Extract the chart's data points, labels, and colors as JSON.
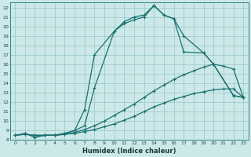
{
  "xlabel": "Humidex (Indice chaleur)",
  "background_color": "#cce8e8",
  "grid_color": "#8abfbf",
  "line_color": "#1a7070",
  "xlim": [
    -0.5,
    23.5
  ],
  "ylim": [
    8,
    22.5
  ],
  "xticks": [
    0,
    1,
    2,
    3,
    4,
    5,
    6,
    7,
    8,
    9,
    10,
    11,
    12,
    13,
    14,
    15,
    16,
    17,
    18,
    19,
    20,
    21,
    22,
    23
  ],
  "yticks": [
    8,
    9,
    10,
    11,
    12,
    13,
    14,
    15,
    16,
    17,
    18,
    19,
    20,
    21,
    22
  ],
  "curve1_x": [
    1,
    2,
    3,
    4,
    5,
    6,
    7,
    8,
    10,
    11,
    12,
    13,
    14,
    15,
    16,
    17,
    19,
    20,
    22,
    23
  ],
  "curve1_y": [
    8.7,
    8.3,
    8.5,
    8.5,
    8.7,
    9.0,
    11.2,
    17.0,
    19.5,
    20.5,
    21.0,
    21.2,
    22.2,
    21.2,
    20.8,
    17.3,
    17.2,
    16.0,
    12.7,
    12.5
  ],
  "curve2_x": [
    0,
    1,
    2,
    3,
    4,
    5,
    6,
    7,
    8,
    10,
    11,
    12,
    13,
    14,
    15,
    16,
    17,
    19,
    20,
    22,
    23
  ],
  "curve2_y": [
    8.5,
    8.7,
    8.3,
    8.5,
    8.5,
    8.7,
    9.0,
    9.5,
    13.5,
    19.5,
    20.3,
    20.7,
    21.0,
    22.2,
    21.2,
    20.8,
    19.0,
    17.2,
    16.0,
    12.7,
    12.5
  ],
  "curve3_x": [
    0,
    1,
    2,
    3,
    4,
    5,
    6,
    7,
    8,
    9,
    10,
    11,
    12,
    13,
    14,
    15,
    16,
    17,
    18,
    19,
    20,
    21,
    22,
    23
  ],
  "curve3_y": [
    8.5,
    8.6,
    8.5,
    8.5,
    8.5,
    8.6,
    8.8,
    9.1,
    9.5,
    10.0,
    10.6,
    11.2,
    11.8,
    12.5,
    13.2,
    13.8,
    14.4,
    14.9,
    15.3,
    15.7,
    16.0,
    15.8,
    15.5,
    12.5
  ],
  "curve4_x": [
    0,
    1,
    2,
    3,
    4,
    5,
    6,
    7,
    8,
    9,
    10,
    11,
    12,
    13,
    14,
    15,
    16,
    17,
    18,
    19,
    20,
    21,
    22,
    23
  ],
  "curve4_y": [
    8.5,
    8.6,
    8.5,
    8.5,
    8.5,
    8.6,
    8.7,
    8.9,
    9.1,
    9.4,
    9.7,
    10.1,
    10.5,
    11.0,
    11.5,
    11.9,
    12.3,
    12.6,
    12.9,
    13.1,
    13.3,
    13.4,
    13.4,
    12.5
  ]
}
